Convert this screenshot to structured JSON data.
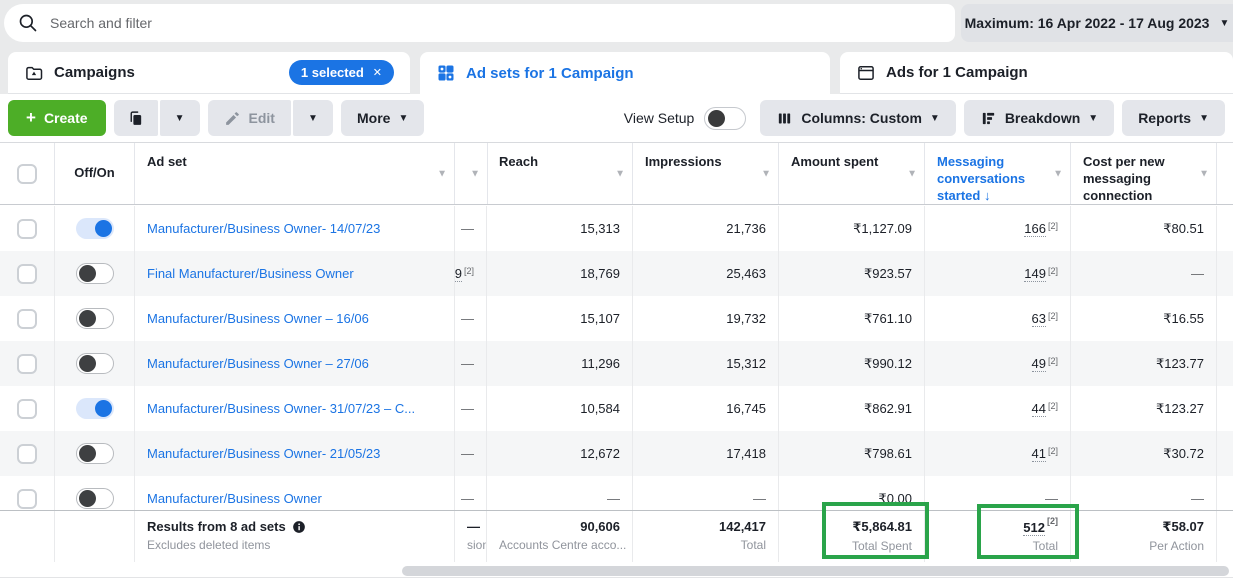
{
  "topbar": {
    "search_placeholder": "Search and filter",
    "date_range_label": "Maximum: 16 Apr 2022 - 17 Aug 2023"
  },
  "tabs": {
    "campaigns": {
      "label": "Campaigns",
      "badge": "1 selected",
      "close": "✕"
    },
    "adsets": {
      "label": "Ad sets for 1 Campaign",
      "active": true
    },
    "ads": {
      "label": "Ads for 1 Campaign"
    }
  },
  "toolbar": {
    "create": "Create",
    "edit": "Edit",
    "more": "More",
    "view_setup": "View Setup",
    "columns": "Columns: Custom",
    "breakdown": "Breakdown",
    "reports": "Reports"
  },
  "table": {
    "headers": {
      "off_on": "Off/On",
      "ad_set": "Ad set",
      "reach": "Reach",
      "impressions": "Impressions",
      "amount_spent": "Amount spent",
      "messaging": "Messaging conversations started",
      "messaging_sort": "↓",
      "cost": "Cost per new messaging connection"
    },
    "rows": [
      {
        "on": true,
        "name": "Manufacturer/Business Owner- 14/07/23",
        "mid": "—",
        "reach": "15,313",
        "impressions": "21,736",
        "spent": "₹1,127.09",
        "msg": "166",
        "msg_note": "[2]",
        "cost": "₹80.51"
      },
      {
        "on": false,
        "name": "Final Manufacturer/Business Owner",
        "mid": "9",
        "mid_note": "[2]",
        "reach": "18,769",
        "impressions": "25,463",
        "spent": "₹923.57",
        "msg": "149",
        "msg_note": "[2]",
        "cost": "—"
      },
      {
        "on": false,
        "name": "Manufacturer/Business Owner – 16/06",
        "mid": "—",
        "reach": "15,107",
        "impressions": "19,732",
        "spent": "₹761.10",
        "msg": "63",
        "msg_note": "[2]",
        "cost": "₹16.55"
      },
      {
        "on": false,
        "name": "Manufacturer/Business Owner – 27/06",
        "mid": "—",
        "reach": "11,296",
        "impressions": "15,312",
        "spent": "₹990.12",
        "msg": "49",
        "msg_note": "[2]",
        "cost": "₹123.77"
      },
      {
        "on": true,
        "name": "Manufacturer/Business Owner- 31/07/23 – C...",
        "mid": "—",
        "reach": "10,584",
        "impressions": "16,745",
        "spent": "₹862.91",
        "msg": "44",
        "msg_note": "[2]",
        "cost": "₹123.27"
      },
      {
        "on": false,
        "name": "Manufacturer/Business Owner- 21/05/23",
        "mid": "—",
        "reach": "12,672",
        "impressions": "17,418",
        "spent": "₹798.61",
        "msg": "41",
        "msg_note": "[2]",
        "cost": "₹30.72"
      },
      {
        "on": false,
        "name": "Manufacturer/Business Owner",
        "mid": "—",
        "reach": "—",
        "impressions": "—",
        "spent": "₹0.00",
        "msg": "—",
        "cost": "—"
      }
    ],
    "footer": {
      "title": "Results from 8 ad sets",
      "subtitle": "Excludes deleted items",
      "mid_value": "—",
      "mid_sub": "sions",
      "reach_value": "90,606",
      "reach_sub": "Accounts Centre acco...",
      "impressions_value": "142,417",
      "impressions_sub": "Total",
      "spent_value": "₹5,864.81",
      "spent_sub": "Total Spent",
      "msg_value": "512",
      "msg_note": "[2]",
      "msg_sub": "Total",
      "cost_value": "₹58.07",
      "cost_sub": "Per Action"
    }
  },
  "colors": {
    "accent_blue": "#1b74e4",
    "create_green": "#4dae27",
    "highlight_green": "#2aa44a",
    "toggle_off_knob": "#3e4042",
    "row_alt_bg": "#f5f6f7"
  },
  "annotations": {
    "highlight_color": "#2aa44a",
    "highlighted_cells": [
      "Total Spent ₹5,864.81",
      "Messaging Total 512"
    ]
  }
}
